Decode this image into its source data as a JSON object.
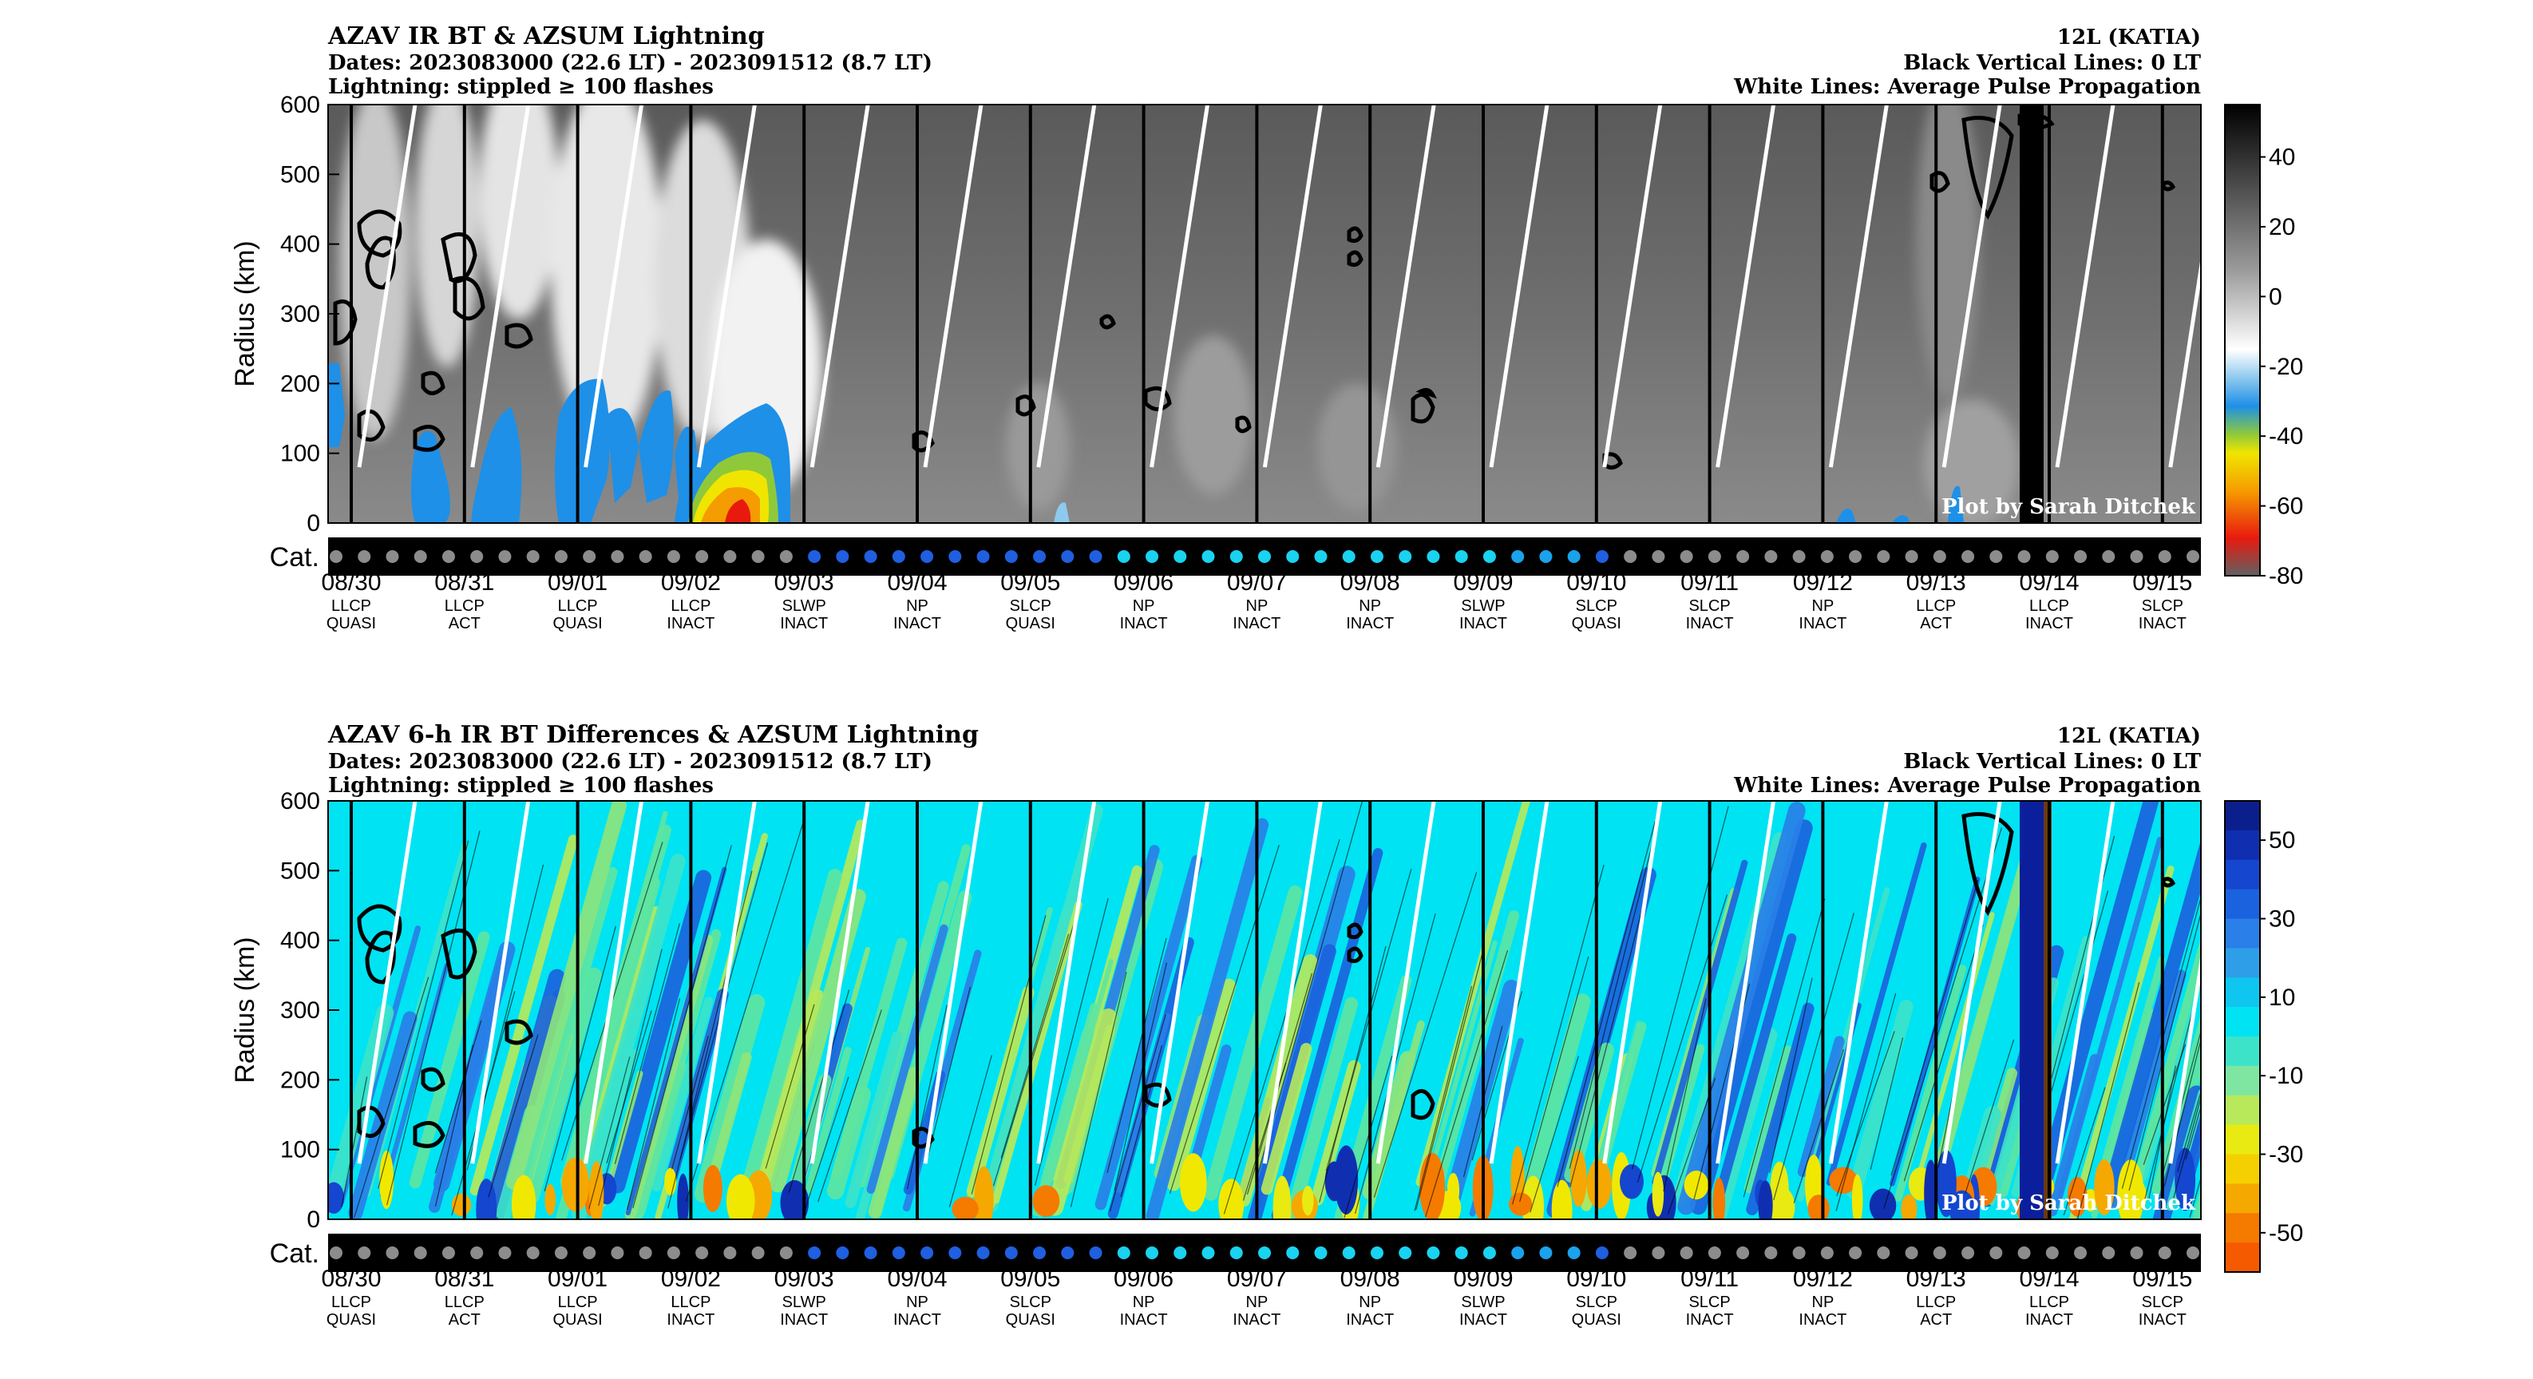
{
  "chart_data": [
    {
      "type": "heatmap",
      "title": "AZAV IR BT & AZSUM Lightning",
      "dates_line": "Dates: 2023083000 (22.6 LT) - 2023091512 (8.7 LT)",
      "lightning_line": "Lightning: stippled ≥ 100 flashes",
      "storm": "12L (KATIA)",
      "right_line2": "Black Vertical Lines: 0 LT",
      "right_line3": "White Lines: Average Pulse Propagation",
      "ylabel": "Radius (km)",
      "yticks": [
        "0",
        "100",
        "200",
        "300",
        "400",
        "500",
        "600"
      ],
      "ylim": [
        0,
        600
      ],
      "cat_label": "Cat.",
      "credit": "Plot by Sarah Ditchek",
      "colorbar": {
        "ticks": [
          "40",
          "20",
          "0",
          "-20",
          "-40",
          "-60",
          "-80"
        ],
        "range": [
          -80,
          55
        ]
      },
      "colors": {
        "cold": "#1e90e8",
        "hot": "#e81a0e",
        "warm": "#f5a400",
        "yellow": "#f0e500"
      }
    },
    {
      "type": "heatmap",
      "title": "AZAV 6-h IR BT Differences & AZSUM Lightning",
      "dates_line": "Dates: 2023083000 (22.6 LT) - 2023091512 (8.7 LT)",
      "lightning_line": "Lightning: stippled ≥ 100 flashes",
      "storm": "12L (KATIA)",
      "right_line2": "Black Vertical Lines: 0 LT",
      "right_line3": "White Lines: Average Pulse Propagation",
      "ylabel": "Radius (km)",
      "yticks": [
        "0",
        "100",
        "200",
        "300",
        "400",
        "500",
        "600"
      ],
      "ylim": [
        0,
        600
      ],
      "cat_label": "Cat.",
      "credit": "Plot by Sarah Ditchek",
      "colorbar": {
        "ticks": [
          "50",
          "30",
          "10",
          "-10",
          "-30",
          "-50"
        ],
        "range": [
          -60,
          60
        ]
      },
      "colors": {
        "bg": "#00e3f2",
        "green": "#5fe6a0",
        "blue": "#1467d6",
        "yellow": "#f0e800",
        "orange": "#f57a00"
      }
    }
  ],
  "days": [
    {
      "date": "08/30",
      "pulse": "LLCP",
      "state": "QUASI"
    },
    {
      "date": "08/31",
      "pulse": "LLCP",
      "state": "ACT"
    },
    {
      "date": "09/01",
      "pulse": "LLCP",
      "state": "QUASI"
    },
    {
      "date": "09/02",
      "pulse": "LLCP",
      "state": "INACT"
    },
    {
      "date": "09/03",
      "pulse": "SLWP",
      "state": "INACT"
    },
    {
      "date": "09/04",
      "pulse": "NP",
      "state": "INACT"
    },
    {
      "date": "09/05",
      "pulse": "SLCP",
      "state": "QUASI"
    },
    {
      "date": "09/06",
      "pulse": "NP",
      "state": "INACT"
    },
    {
      "date": "09/07",
      "pulse": "NP",
      "state": "INACT"
    },
    {
      "date": "09/08",
      "pulse": "NP",
      "state": "INACT"
    },
    {
      "date": "09/09",
      "pulse": "SLWP",
      "state": "INACT"
    },
    {
      "date": "09/10",
      "pulse": "SLCP",
      "state": "QUASI"
    },
    {
      "date": "09/11",
      "pulse": "SLCP",
      "state": "INACT"
    },
    {
      "date": "09/12",
      "pulse": "NP",
      "state": "INACT"
    },
    {
      "date": "09/13",
      "pulse": "LLCP",
      "state": "ACT"
    },
    {
      "date": "09/14",
      "pulse": "LLCP",
      "state": "INACT"
    },
    {
      "date": "09/15",
      "pulse": "SLCP",
      "state": "INACT"
    }
  ],
  "category_dots": {
    "count": 67,
    "colors": {
      "gray": "#8c8c8c",
      "blue": "#1f5fe0",
      "cyan": "#19d3f0",
      "light_blue": "#1aa3ec"
    },
    "sequence": "gray x17, blue x11, cyan x14, light_blue x3, blue x1, gray x21"
  }
}
